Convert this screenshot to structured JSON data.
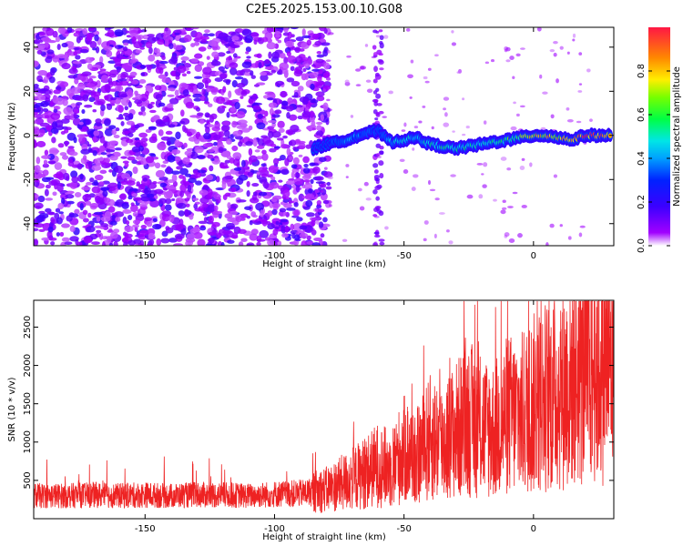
{
  "title": "C2E5.2025.153.00.10.G08",
  "chart_data": [
    {
      "type": "heatmap",
      "xlabel": "Height of straight line (km)",
      "ylabel": "Frequency (Hz)",
      "xlim": [
        -193,
        31
      ],
      "ylim": [
        -50,
        49
      ],
      "x_ticks": [
        -150,
        -100,
        -50,
        0
      ],
      "y_ticks": [
        -40,
        -20,
        0,
        20,
        40
      ],
      "x_tick_labels": [
        "-150",
        "-100",
        "-50",
        "0"
      ],
      "y_tick_labels": [
        "-40",
        "-20",
        "0",
        "20",
        "40"
      ],
      "colorbar": {
        "label": "Normalized spectral amplitude",
        "range": [
          0.0,
          1.0
        ],
        "ticks": [
          0.0,
          0.2,
          0.4,
          0.6,
          0.8
        ],
        "tick_labels": [
          "0.0",
          "0.2",
          "0.4",
          "0.6",
          "0.8"
        ]
      },
      "ridge": {
        "description_free": true,
        "x": [
          -85,
          -80,
          -75,
          -70,
          -65,
          -60,
          -55,
          -50,
          -45,
          -40,
          -35,
          -30,
          -25,
          -20,
          -15,
          -10,
          -5,
          0,
          5,
          10,
          15,
          20,
          25,
          30
        ],
        "frequency": [
          -6,
          -4,
          -3,
          -1,
          1,
          2,
          -3,
          -2,
          -1,
          -4,
          -5,
          -6,
          -5,
          -4,
          -3,
          -2,
          -1,
          0,
          0,
          -1,
          -2,
          0,
          0,
          0
        ],
        "amplitude": [
          0.2,
          0.3,
          0.35,
          0.4,
          0.35,
          0.3,
          0.45,
          0.5,
          0.45,
          0.5,
          0.55,
          0.5,
          0.55,
          0.5,
          0.55,
          0.6,
          0.65,
          0.8,
          0.85,
          0.8,
          0.9,
          0.95,
          0.95,
          0.9
        ]
      },
      "noise_region_x": [
        -193,
        -85
      ],
      "grid": false
    },
    {
      "type": "line",
      "xlabel": "Height of straight line (km)",
      "ylabel": "SNR (10 * v/v)",
      "xlim": [
        -193,
        31
      ],
      "ylim": [
        0,
        2850
      ],
      "x_ticks": [
        -150,
        -100,
        -50,
        0
      ],
      "y_ticks": [
        500,
        1000,
        1500,
        2000,
        2500
      ],
      "x_tick_labels": [
        "-150",
        "-100",
        "-50",
        "0"
      ],
      "y_tick_labels": [
        "500",
        "1000",
        "1500",
        "2000",
        "2500"
      ],
      "series": [
        {
          "color": "#ee2222",
          "x": [
            -193,
            -180,
            -170,
            -160,
            -150,
            -140,
            -130,
            -120,
            -110,
            -100,
            -90,
            -80,
            -75,
            -70,
            -65,
            -60,
            -55,
            -50,
            -45,
            -40,
            -35,
            -30,
            -25,
            -20,
            -15,
            -10,
            -5,
            0,
            5,
            10,
            15,
            20,
            25,
            31
          ],
          "y": [
            300,
            300,
            310,
            300,
            310,
            300,
            310,
            310,
            300,
            320,
            330,
            380,
            450,
            520,
            600,
            700,
            650,
            900,
            800,
            1050,
            1000,
            1150,
            1300,
            1200,
            1150,
            1350,
            1350,
            1500,
            1600,
            1650,
            1850,
            1900,
            2050,
            2100
          ]
        }
      ],
      "grid": false
    }
  ],
  "colors": {
    "line": "#ee2222",
    "noise": "#7b2be2",
    "axis": "#000000"
  }
}
